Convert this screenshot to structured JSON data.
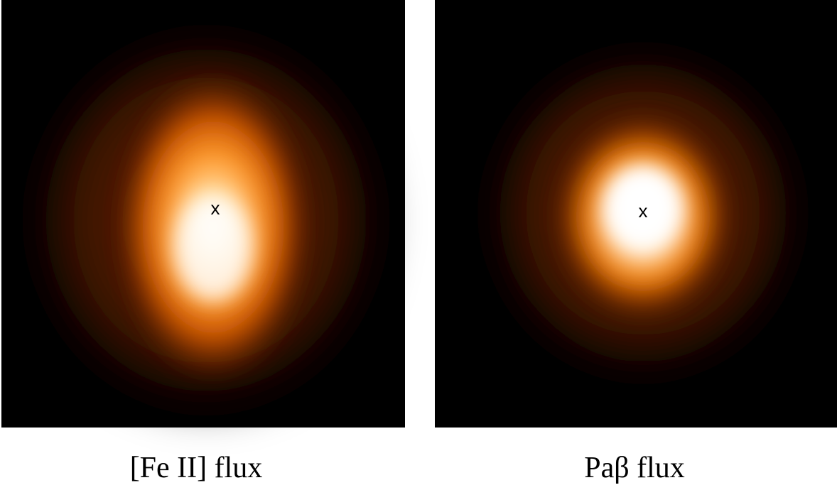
{
  "panels": [
    {
      "marker": "x",
      "caption": "[Fe II] flux"
    },
    {
      "marker": "x",
      "caption": "Paβ flux"
    }
  ]
}
